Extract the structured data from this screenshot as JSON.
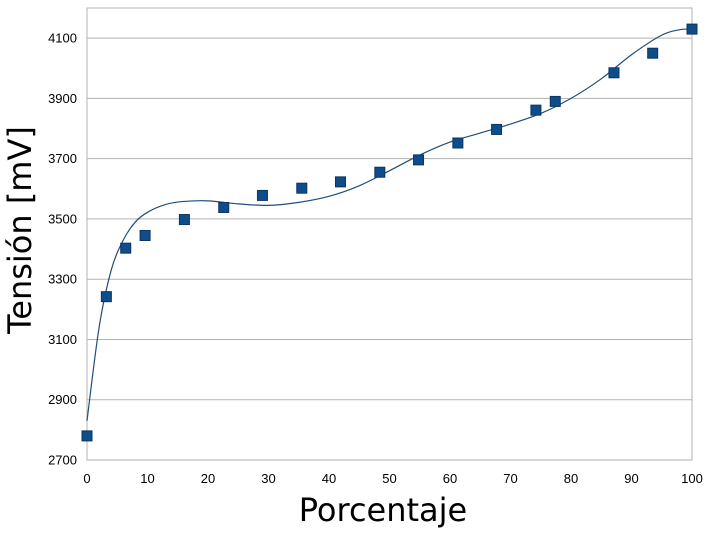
{
  "chart_data": {
    "type": "scatter",
    "title": "",
    "xlabel": "Porcentaje",
    "ylabel": "Tensión [mV]",
    "xlim": [
      0,
      100
    ],
    "ylim": [
      2700,
      4200
    ],
    "xticks": [
      0,
      10,
      20,
      30,
      40,
      50,
      60,
      70,
      80,
      90,
      100
    ],
    "yticks": [
      2700,
      2900,
      3100,
      3300,
      3500,
      3700,
      3900,
      4100
    ],
    "grid": true,
    "legend": "none",
    "series": [
      {
        "marker": "square",
        "color": "#0f4c8a",
        "x": [
          0,
          3.2,
          6.4,
          9.6,
          16.1,
          22.6,
          29.0,
          35.5,
          41.9,
          48.4,
          54.8,
          61.3,
          67.7,
          74.2,
          77.4,
          87.1,
          93.5,
          100
        ],
        "y": [
          2780,
          3242,
          3403,
          3445,
          3498,
          3538,
          3578,
          3602,
          3623,
          3655,
          3696,
          3752,
          3797,
          3861,
          3890,
          3985,
          4050,
          4130
        ]
      }
    ],
    "trendline": {
      "color": "#1f4e79",
      "x": [
        0,
        2,
        4,
        6,
        8,
        10,
        13,
        16,
        20,
        25,
        30,
        35,
        40,
        45,
        50,
        55,
        60,
        65,
        70,
        75,
        80,
        85,
        90,
        95,
        98,
        100
      ],
      "y": [
        2830,
        3140,
        3330,
        3430,
        3490,
        3522,
        3548,
        3558,
        3560,
        3550,
        3545,
        3555,
        3575,
        3610,
        3660,
        3712,
        3755,
        3785,
        3815,
        3850,
        3900,
        3965,
        4045,
        4110,
        4128,
        4130
      ]
    }
  }
}
